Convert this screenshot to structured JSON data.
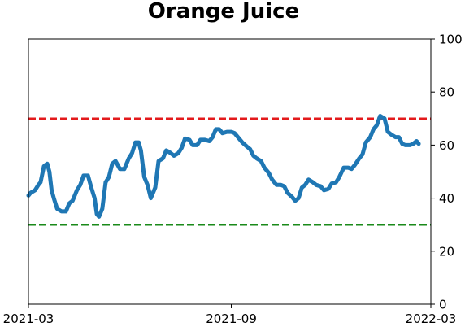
{
  "chart_data": {
    "type": "line",
    "title": "Orange Juice",
    "xlabel": "",
    "ylabel": "",
    "x_ticks": [
      "2021-03",
      "2021-09",
      "2022-03"
    ],
    "x_range": [
      "2021-03-01",
      "2022-03-01"
    ],
    "ylim": [
      0,
      100
    ],
    "y_ticks": [
      0,
      20,
      40,
      60,
      80,
      100
    ],
    "y_axis_side": "right",
    "grid": false,
    "legend": "none",
    "reference_lines": [
      {
        "y": 70,
        "color": "#e31a1c",
        "style": "dashed"
      },
      {
        "y": 30,
        "color": "#1a8a1a",
        "style": "dashed"
      }
    ],
    "series": [
      {
        "color": "#1f77b4",
        "points": [
          [
            "2021-03-01",
            41
          ],
          [
            "2021-03-03",
            42
          ],
          [
            "2021-03-07",
            43
          ],
          [
            "2021-03-10",
            45
          ],
          [
            "2021-03-12",
            46
          ],
          [
            "2021-03-15",
            52
          ],
          [
            "2021-03-18",
            53
          ],
          [
            "2021-03-20",
            50
          ],
          [
            "2021-03-22",
            43
          ],
          [
            "2021-03-24",
            40
          ],
          [
            "2021-03-27",
            36
          ],
          [
            "2021-03-31",
            35
          ],
          [
            "2021-04-04",
            35
          ],
          [
            "2021-04-07",
            38
          ],
          [
            "2021-04-10",
            39
          ],
          [
            "2021-04-14",
            43
          ],
          [
            "2021-04-17",
            45
          ],
          [
            "2021-04-20",
            48.5
          ],
          [
            "2021-04-24",
            48.5
          ],
          [
            "2021-04-27",
            44
          ],
          [
            "2021-04-30",
            40
          ],
          [
            "2021-05-02",
            34
          ],
          [
            "2021-05-04",
            33
          ],
          [
            "2021-05-07",
            36
          ],
          [
            "2021-05-10",
            46
          ],
          [
            "2021-05-13",
            48
          ],
          [
            "2021-05-16",
            53
          ],
          [
            "2021-05-19",
            54
          ],
          [
            "2021-05-23",
            51
          ],
          [
            "2021-05-27",
            51
          ],
          [
            "2021-05-31",
            55
          ],
          [
            "2021-06-03",
            57
          ],
          [
            "2021-06-06",
            61
          ],
          [
            "2021-06-09",
            61
          ],
          [
            "2021-06-11",
            58
          ],
          [
            "2021-06-14",
            48
          ],
          [
            "2021-06-17",
            45
          ],
          [
            "2021-06-20",
            40
          ],
          [
            "2021-06-24",
            44
          ],
          [
            "2021-06-27",
            54
          ],
          [
            "2021-07-01",
            55
          ],
          [
            "2021-07-04",
            58
          ],
          [
            "2021-07-08",
            57
          ],
          [
            "2021-07-11",
            56
          ],
          [
            "2021-07-15",
            57
          ],
          [
            "2021-07-18",
            59
          ],
          [
            "2021-07-21",
            62.5
          ],
          [
            "2021-07-25",
            62
          ],
          [
            "2021-07-28",
            60
          ],
          [
            "2021-08-01",
            60
          ],
          [
            "2021-08-04",
            62
          ],
          [
            "2021-08-08",
            62
          ],
          [
            "2021-08-12",
            61.5
          ],
          [
            "2021-08-15",
            63
          ],
          [
            "2021-08-18",
            66
          ],
          [
            "2021-08-21",
            66
          ],
          [
            "2021-08-24",
            64.5
          ],
          [
            "2021-08-28",
            65
          ],
          [
            "2021-09-01",
            65
          ],
          [
            "2021-09-04",
            64.5
          ],
          [
            "2021-09-07",
            63
          ],
          [
            "2021-09-11",
            61
          ],
          [
            "2021-09-15",
            59.5
          ],
          [
            "2021-09-18",
            58.5
          ],
          [
            "2021-09-21",
            56
          ],
          [
            "2021-09-24",
            55
          ],
          [
            "2021-09-28",
            54
          ],
          [
            "2021-10-01",
            51.5
          ],
          [
            "2021-10-05",
            49.5
          ],
          [
            "2021-10-08",
            47
          ],
          [
            "2021-10-12",
            45
          ],
          [
            "2021-10-16",
            45
          ],
          [
            "2021-10-19",
            44.5
          ],
          [
            "2021-10-22",
            42
          ],
          [
            "2021-10-26",
            40.5
          ],
          [
            "2021-10-29",
            39
          ],
          [
            "2021-11-01",
            40
          ],
          [
            "2021-11-04",
            44
          ],
          [
            "2021-11-07",
            45
          ],
          [
            "2021-11-10",
            47
          ],
          [
            "2021-11-14",
            46
          ],
          [
            "2021-11-17",
            45
          ],
          [
            "2021-11-21",
            44.5
          ],
          [
            "2021-11-24",
            43
          ],
          [
            "2021-11-28",
            43.5
          ],
          [
            "2021-12-01",
            45.5
          ],
          [
            "2021-12-05",
            46
          ],
          [
            "2021-12-08",
            48
          ],
          [
            "2021-12-12",
            51.5
          ],
          [
            "2021-12-16",
            51.5
          ],
          [
            "2021-12-19",
            51
          ],
          [
            "2021-12-22",
            52.5
          ],
          [
            "2021-12-26",
            55
          ],
          [
            "2021-12-29",
            56.5
          ],
          [
            "2022-01-01",
            61
          ],
          [
            "2022-01-05",
            63
          ],
          [
            "2022-01-08",
            66
          ],
          [
            "2022-01-11",
            67.5
          ],
          [
            "2022-01-14",
            71
          ],
          [
            "2022-01-18",
            70
          ],
          [
            "2022-01-21",
            65
          ],
          [
            "2022-01-24",
            64
          ],
          [
            "2022-01-28",
            63
          ],
          [
            "2022-01-31",
            63
          ],
          [
            "2022-02-03",
            60.5
          ],
          [
            "2022-02-06",
            60
          ],
          [
            "2022-02-10",
            60
          ],
          [
            "2022-02-13",
            60.5
          ],
          [
            "2022-02-16",
            61.5
          ],
          [
            "2022-02-18",
            60.5
          ]
        ]
      }
    ]
  }
}
